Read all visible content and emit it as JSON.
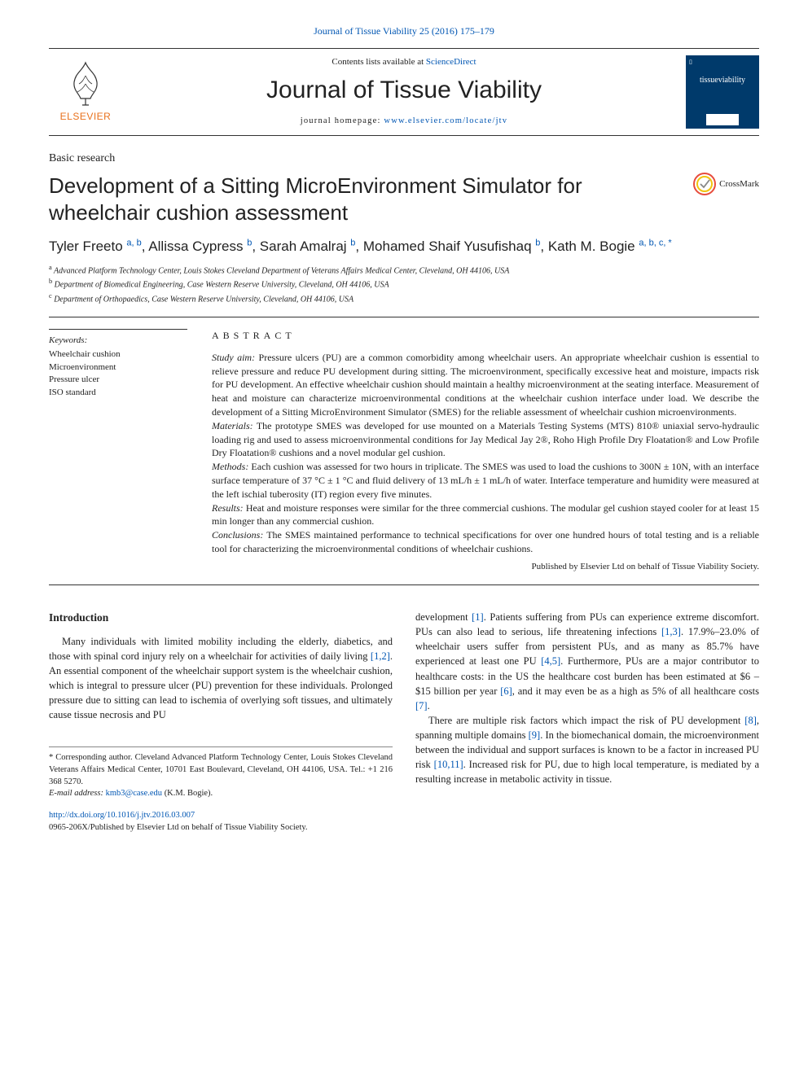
{
  "top_citation": {
    "text": "Journal of Tissue Viability 25 (2016) 175–179",
    "link_color": "#0056b3"
  },
  "masthead": {
    "contents_prefix": "Contents lists available at ",
    "contents_link": "ScienceDirect",
    "journal_name": "Journal of Tissue Viability",
    "homepage_prefix": "journal homepage: ",
    "homepage_link": "www.elsevier.com/locate/jtv",
    "publisher_word": "ELSEVIER",
    "publisher_color": "#e9711c",
    "cover_bg": "#003a6b",
    "cover_text": "tissueviability"
  },
  "article_type": "Basic research",
  "title": "Development of a Sitting MicroEnvironment Simulator for wheelchair cushion assessment",
  "crossmark_label": "CrossMark",
  "authors": [
    {
      "name": "Tyler Freeto",
      "sup": "a, b"
    },
    {
      "name": "Allissa Cypress",
      "sup": "b"
    },
    {
      "name": "Sarah Amalraj",
      "sup": "b"
    },
    {
      "name": "Mohamed Shaif Yusufishaq",
      "sup": "b"
    },
    {
      "name": "Kath M. Bogie",
      "sup": "a, b, c, *"
    }
  ],
  "affiliations": [
    {
      "key": "a",
      "text": "Advanced Platform Technology Center, Louis Stokes Cleveland Department of Veterans Affairs Medical Center, Cleveland, OH 44106, USA"
    },
    {
      "key": "b",
      "text": "Department of Biomedical Engineering, Case Western Reserve University, Cleveland, OH 44106, USA"
    },
    {
      "key": "c",
      "text": "Department of Orthopaedics, Case Western Reserve University, Cleveland, OH 44106, USA"
    }
  ],
  "keywords": {
    "heading": "Keywords:",
    "list": [
      "Wheelchair cushion",
      "Microenvironment",
      "Pressure ulcer",
      "ISO standard"
    ]
  },
  "abstract": {
    "title": "ABSTRACT",
    "sections": [
      {
        "label": "Study aim:",
        "text": "Pressure ulcers (PU) are a common comorbidity among wheelchair users. An appropriate wheelchair cushion is essential to relieve pressure and reduce PU development during sitting. The microenvironment, specifically excessive heat and moisture, impacts risk for PU development. An effective wheelchair cushion should maintain a healthy microenvironment at the seating interface. Measurement of heat and moisture can characterize microenvironmental conditions at the wheelchair cushion interface under load. We describe the development of a Sitting MicroEnvironment Simulator (SMES) for the reliable assessment of wheelchair cushion microenvironments."
      },
      {
        "label": "Materials:",
        "text": "The prototype SMES was developed for use mounted on a Materials Testing Systems (MTS) 810® uniaxial servo-hydraulic loading rig and used to assess microenvironmental conditions for Jay Medical Jay 2®, Roho High Profile Dry Floatation® and Low Profile Dry Floatation® cushions and a novel modular gel cushion."
      },
      {
        "label": "Methods:",
        "text": "Each cushion was assessed for two hours in triplicate. The SMES was used to load the cushions to 300N ± 10N, with an interface surface temperature of 37 °C ± 1 °C and fluid delivery of 13 mL/h ± 1 mL/h of water. Interface temperature and humidity were measured at the left ischial tuberosity (IT) region every five minutes."
      },
      {
        "label": "Results:",
        "text": "Heat and moisture responses were similar for the three commercial cushions. The modular gel cushion stayed cooler for at least 15 min longer than any commercial cushion."
      },
      {
        "label": "Conclusions:",
        "text": "The SMES maintained performance to technical specifications for over one hundred hours of total testing and is a reliable tool for characterizing the microenvironmental conditions of wheelchair cushions."
      }
    ],
    "copyright": "Published by Elsevier Ltd on behalf of Tissue Viability Society."
  },
  "body": {
    "intro_heading": "Introduction",
    "col1": {
      "p1_a": "Many individuals with limited mobility including the elderly, diabetics, and those with spinal cord injury rely on a wheelchair for activities of daily living ",
      "p1_ref1": "[1,2]",
      "p1_b": ". An essential component of the wheelchair support system is the wheelchair cushion, which is integral to pressure ulcer (PU) prevention for these individuals. Prolonged pressure due to sitting can lead to ischemia of overlying soft tissues, and ultimately cause tissue necrosis and PU"
    },
    "col2": {
      "p1_a": "development ",
      "p1_ref1": "[1]",
      "p1_b": ". Patients suffering from PUs can experience extreme discomfort. PUs can also lead to serious, life threatening infections ",
      "p1_ref2": "[1,3]",
      "p1_c": ". 17.9%–23.0% of wheelchair users suffer from persistent PUs, and as many as 85.7% have experienced at least one PU ",
      "p1_ref3": "[4,5]",
      "p1_d": ". Furthermore, PUs are a major contributor to healthcare costs: in the US the healthcare cost burden has been estimated at $6 – $15 billion per year ",
      "p1_ref4": "[6]",
      "p1_e": ", and it may even be as a high as 5% of all healthcare costs ",
      "p1_ref5": "[7]",
      "p1_f": ".",
      "p2_a": "There are multiple risk factors which impact the risk of PU development ",
      "p2_ref1": "[8]",
      "p2_b": ", spanning multiple domains ",
      "p2_ref2": "[9]",
      "p2_c": ". In the biomechanical domain, the microenvironment between the individual and support surfaces is known to be a factor in increased PU risk ",
      "p2_ref3": "[10,11]",
      "p2_d": ". Increased risk for PU, due to high local temperature, is mediated by a resulting increase in metabolic activity in tissue."
    }
  },
  "footnote": {
    "corr_label": "* Corresponding author. ",
    "corr_text": "Cleveland Advanced Platform Technology Center, Louis Stokes Cleveland Veterans Affairs Medical Center, 10701 East Boulevard, Cleveland, OH 44106, USA. Tel.: +1 216 368 5270.",
    "email_label": "E-mail address: ",
    "email": "kmb3@case.edu",
    "email_suffix": " (K.M. Bogie)."
  },
  "doi": {
    "url": "http://dx.doi.org/10.1016/j.jtv.2016.03.007",
    "issn_line": "0965-206X/Published by Elsevier Ltd on behalf of Tissue Viability Society."
  },
  "colors": {
    "link": "#0056b3",
    "rule": "#333333",
    "text": "#222222",
    "crossmark_ring1": "#e74c3c",
    "crossmark_ring2": "#f1c40f",
    "crossmark_check": "#888"
  }
}
